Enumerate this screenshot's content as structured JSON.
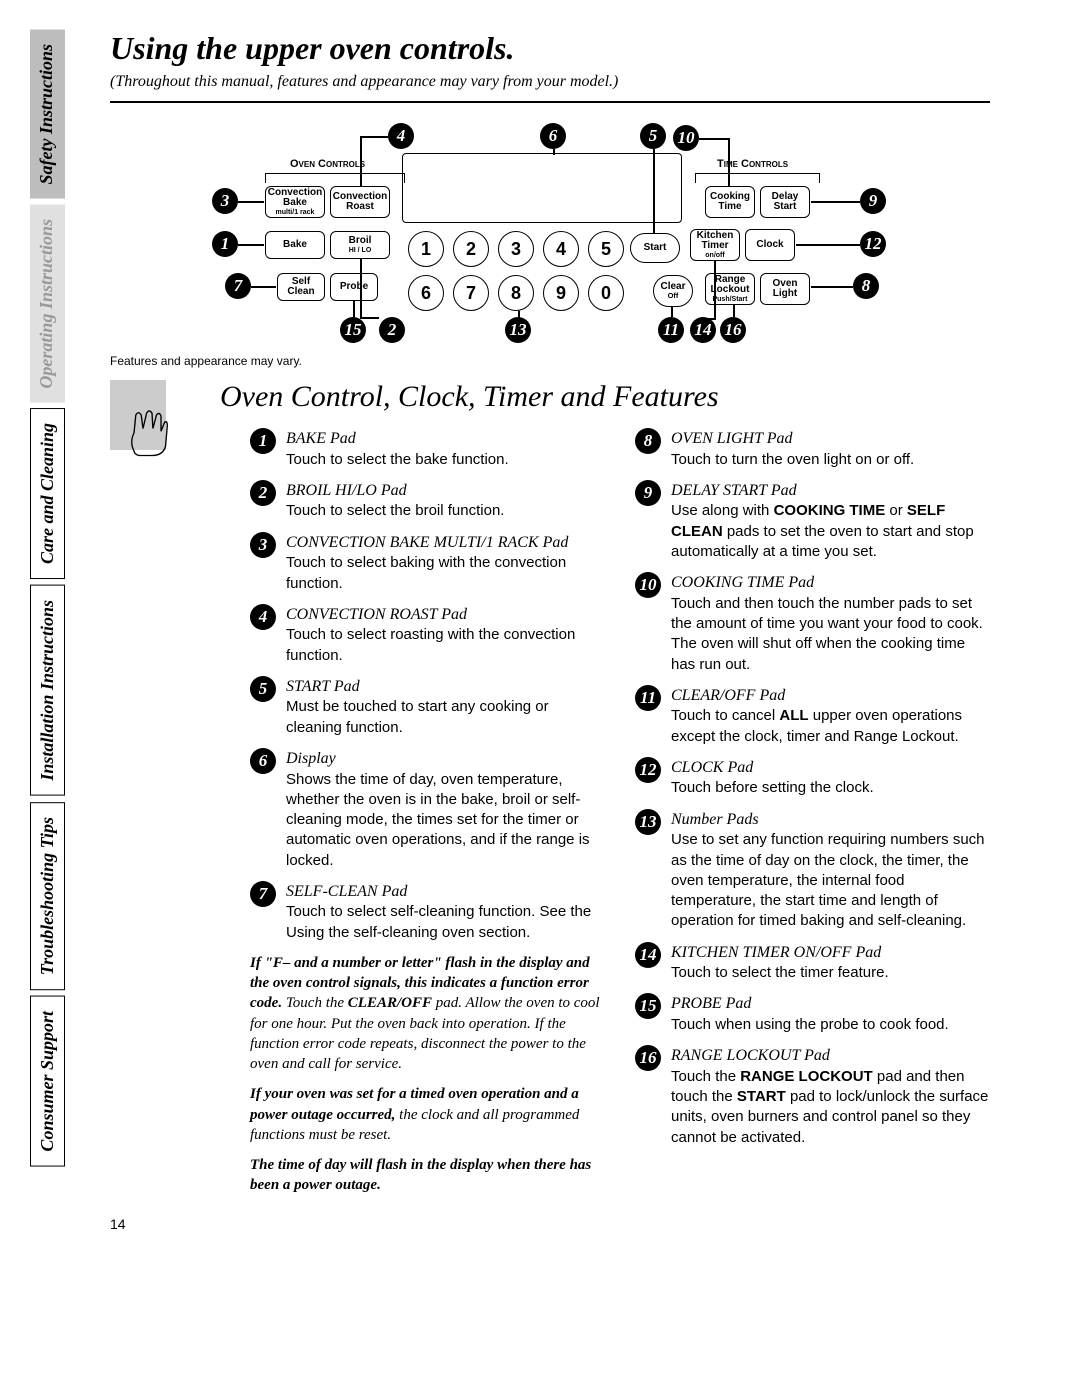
{
  "tabs": {
    "safety": "Safety Instructions",
    "operating": "Operating Instructions",
    "care": "Care and Cleaning",
    "install": "Installation Instructions",
    "trouble": "Troubleshooting Tips",
    "support": "Consumer Support"
  },
  "title": "Using the upper oven controls.",
  "subtitle": "(Throughout this manual, features and appearance may vary from your model.)",
  "panel": {
    "sections": {
      "oven": "Oven Controls",
      "time": "Time Controls"
    },
    "buttons": {
      "conv_bake": "Convection Bake",
      "conv_bake_sub": "multi/1 rack",
      "conv_roast": "Convection Roast",
      "cook_time": "Cooking Time",
      "delay_start": "Delay Start",
      "bake": "Bake",
      "broil": "Broil",
      "broil_sub": "HI / LO",
      "kitchen_timer": "Kitchen Timer",
      "kitchen_timer_sub": "on/off",
      "clock": "Clock",
      "self_clean": "Self Clean",
      "probe": "Probe",
      "range_lockout": "Range Lockout",
      "range_lockout_sub": "Push/Start",
      "oven_light": "Oven Light",
      "start": "Start",
      "clear": "Clear",
      "clear_sub": "Off"
    },
    "keypad": [
      "1",
      "2",
      "3",
      "4",
      "5",
      "6",
      "7",
      "8",
      "9",
      "0"
    ]
  },
  "note": "Features and appearance may vary.",
  "section_title": "Oven Control, Clock, Timer and Features",
  "features_left": [
    {
      "n": "1",
      "t": "BAKE Pad",
      "d": "Touch to select the bake function."
    },
    {
      "n": "2",
      "t": "BROIL HI/LO Pad",
      "d": "Touch to select the broil function."
    },
    {
      "n": "3",
      "t": "CONVECTION BAKE MULTI/1 RACK Pad",
      "d": "Touch to select baking with the convection function."
    },
    {
      "n": "4",
      "t": "CONVECTION ROAST Pad",
      "d": "Touch to select roasting with the convection function."
    },
    {
      "n": "5",
      "t": "START Pad",
      "d": "Must be touched to start any cooking or cleaning function."
    },
    {
      "n": "6",
      "t": "Display",
      "d": "Shows the time of day, oven temperature, whether the oven is in the bake, broil or self-cleaning mode, the times set for the timer or automatic oven operations, and if the range is locked."
    },
    {
      "n": "7",
      "t": "SELF-CLEAN Pad",
      "d": "Touch to select self-cleaning function. See the Using the self-cleaning oven section."
    }
  ],
  "features_right": [
    {
      "n": "8",
      "t": "OVEN LIGHT Pad",
      "d": "Touch to turn the oven light on or off."
    },
    {
      "n": "9",
      "t": "DELAY START Pad",
      "d": "Use along with <b>COOKING TIME</b> or <b>SELF CLEAN</b> pads to set the oven to start and stop automatically at a time you set."
    },
    {
      "n": "10",
      "t": "COOKING TIME Pad",
      "d": "Touch and then touch the number pads to set the amount of time you want your food to cook. The oven will shut off when the cooking time has run out."
    },
    {
      "n": "11",
      "t": "CLEAR/OFF Pad",
      "d": "Touch to cancel <b>ALL</b> upper oven operations except the clock, timer and Range Lockout."
    },
    {
      "n": "12",
      "t": "CLOCK Pad",
      "d": "Touch before setting the clock."
    },
    {
      "n": "13",
      "t": "Number Pads",
      "d": "Use to set any function requiring numbers such as the time of day on the clock, the timer, the oven temperature, the internal food temperature, the start time and length of operation for timed baking and self-cleaning."
    },
    {
      "n": "14",
      "t": "KITCHEN TIMER ON/OFF Pad",
      "d": "Touch to select the timer feature."
    },
    {
      "n": "15",
      "t": "PROBE Pad",
      "d": "Touch when using the probe to cook food."
    },
    {
      "n": "16",
      "t": "RANGE LOCKOUT Pad",
      "d": "Touch the <b>RANGE LOCKOUT</b> pad and then touch the <b>START</b> pad to lock/unlock the surface units, oven burners and control panel so they cannot be activated."
    }
  ],
  "notes_block": [
    "<b>If \"F– and a number or letter\" flash in the display and the oven control signals, this indicates a function error code.</b> Touch the <b>CLEAR/OFF</b> pad. Allow the oven to cool for one hour. Put the oven back into operation. If the function error code repeats, disconnect the power to the oven and call for service.",
    "<b>If your oven was set for a timed oven operation and a power outage occurred,</b> the clock and all programmed functions must be reset.",
    "<b>The time of day will flash in the display when there has been a power outage.</b>"
  ],
  "page_num": "14",
  "colors": {
    "tab_active_bg": "#bdbdbd",
    "tab_dim_bg": "#e0e0e0",
    "callout_bg": "#000000"
  }
}
